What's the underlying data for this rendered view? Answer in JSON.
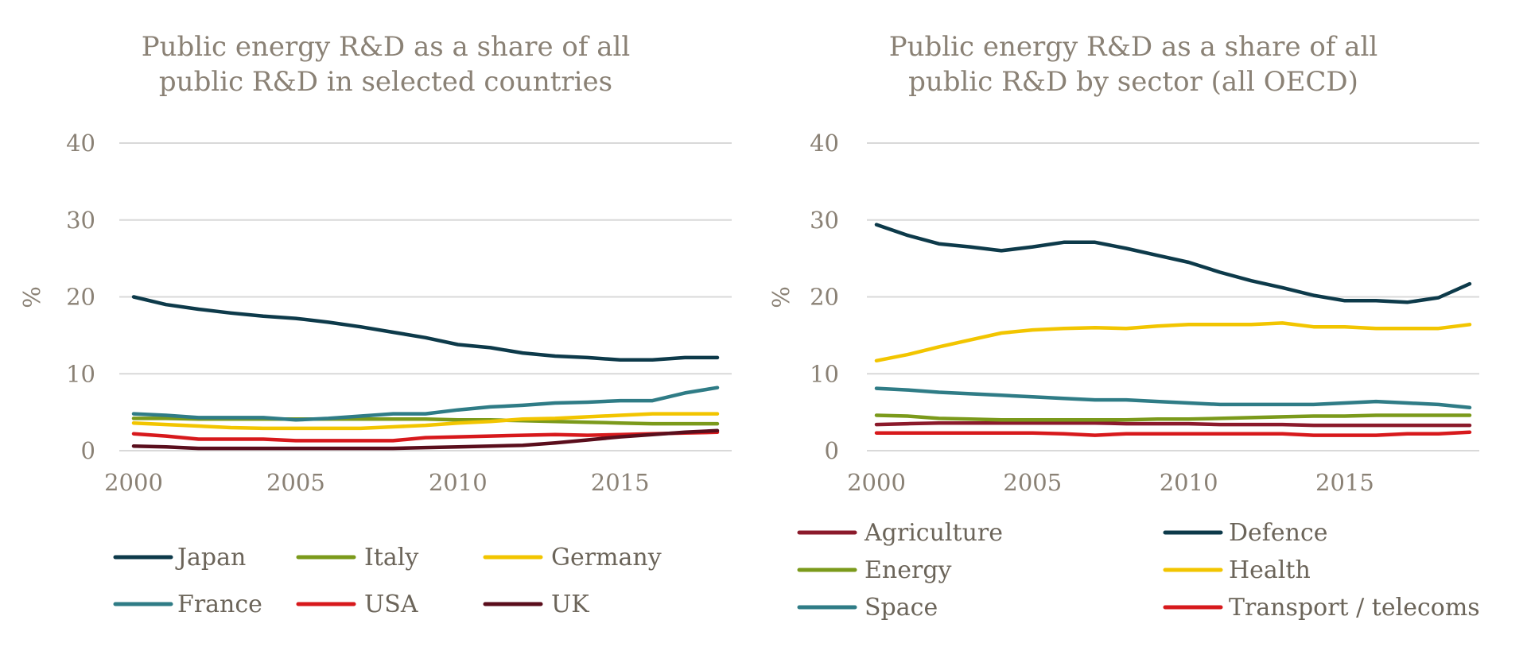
{
  "chart_data": [
    {
      "type": "line",
      "title_lines": [
        "Public energy R&D as a share of all",
        "public R&D in selected countries"
      ],
      "ylabel": "%",
      "xlabel": "",
      "ylim": [
        0,
        40
      ],
      "yticks": [
        0,
        10,
        20,
        30,
        40
      ],
      "xticks": [
        2000,
        2005,
        2010,
        2015
      ],
      "grid": true,
      "legend_position": "bottom",
      "x": [
        2000,
        2001,
        2002,
        2003,
        2004,
        2005,
        2006,
        2007,
        2008,
        2009,
        2010,
        2011,
        2012,
        2013,
        2014,
        2015,
        2016,
        2017,
        2018
      ],
      "series": [
        {
          "name": "Japan",
          "color": "#0d3a4a",
          "values": [
            20.0,
            19.0,
            18.4,
            17.9,
            17.5,
            17.2,
            16.7,
            16.1,
            15.4,
            14.7,
            13.8,
            13.4,
            12.7,
            12.3,
            12.1,
            11.8,
            11.8,
            12.1,
            12.1
          ]
        },
        {
          "name": "Italy",
          "color": "#7b9a1b",
          "values": [
            4.2,
            4.2,
            4.1,
            4.1,
            4.1,
            4.1,
            4.1,
            4.1,
            4.1,
            4.1,
            4.0,
            4.0,
            3.9,
            3.8,
            3.7,
            3.6,
            3.5,
            3.5,
            3.5
          ]
        },
        {
          "name": "Germany",
          "color": "#f2c500",
          "values": [
            3.6,
            3.4,
            3.2,
            3.0,
            2.9,
            2.9,
            2.9,
            2.9,
            3.1,
            3.3,
            3.6,
            3.8,
            4.1,
            4.2,
            4.4,
            4.6,
            4.8,
            4.8,
            4.8
          ]
        },
        {
          "name": "France",
          "color": "#2f7c86",
          "values": [
            4.8,
            4.6,
            4.3,
            4.3,
            4.3,
            4.0,
            4.2,
            4.5,
            4.8,
            4.8,
            5.3,
            5.7,
            5.9,
            6.2,
            6.3,
            6.5,
            6.5,
            7.5,
            8.2
          ]
        },
        {
          "name": "USA",
          "color": "#d7191c",
          "values": [
            2.2,
            1.9,
            1.5,
            1.5,
            1.5,
            1.3,
            1.3,
            1.3,
            1.3,
            1.7,
            1.8,
            1.9,
            2.0,
            2.1,
            2.0,
            2.1,
            2.2,
            2.3,
            2.4
          ]
        },
        {
          "name": "UK",
          "color": "#5a0e1c",
          "values": [
            0.6,
            0.5,
            0.3,
            0.3,
            0.3,
            0.3,
            0.3,
            0.3,
            0.3,
            0.4,
            0.5,
            0.6,
            0.7,
            1.0,
            1.4,
            1.8,
            2.1,
            2.4,
            2.6
          ]
        }
      ]
    },
    {
      "type": "line",
      "title_lines": [
        "Public energy R&D as a share of all",
        "public R&D by sector (all OECD)"
      ],
      "ylabel": "%",
      "xlabel": "",
      "ylim": [
        0,
        40
      ],
      "yticks": [
        0,
        10,
        20,
        30,
        40
      ],
      "xticks": [
        2000,
        2005,
        2010,
        2015
      ],
      "grid": true,
      "legend_position": "bottom",
      "x": [
        2000,
        2001,
        2002,
        2003,
        2004,
        2005,
        2006,
        2007,
        2008,
        2009,
        2010,
        2011,
        2012,
        2013,
        2014,
        2015,
        2016,
        2017,
        2018,
        2019
      ],
      "series": [
        {
          "name": "Agriculture",
          "color": "#8b1a2b",
          "values": [
            3.4,
            3.5,
            3.6,
            3.6,
            3.6,
            3.6,
            3.6,
            3.6,
            3.5,
            3.5,
            3.5,
            3.4,
            3.4,
            3.4,
            3.3,
            3.3,
            3.3,
            3.3,
            3.3,
            3.3
          ]
        },
        {
          "name": "Defence",
          "color": "#0d3a4a",
          "values": [
            29.4,
            28.0,
            26.9,
            26.5,
            26.0,
            26.5,
            27.1,
            27.1,
            26.3,
            25.4,
            24.5,
            23.2,
            22.1,
            21.2,
            20.2,
            19.5,
            19.5,
            19.3,
            19.9,
            21.7
          ]
        },
        {
          "name": "Energy",
          "color": "#7b9a1b",
          "values": [
            4.6,
            4.5,
            4.2,
            4.1,
            4.0,
            4.0,
            4.0,
            4.0,
            4.0,
            4.1,
            4.1,
            4.2,
            4.3,
            4.4,
            4.5,
            4.5,
            4.6,
            4.6,
            4.6,
            4.6
          ]
        },
        {
          "name": "Health",
          "color": "#f2c500",
          "values": [
            11.7,
            12.5,
            13.5,
            14.4,
            15.3,
            15.7,
            15.9,
            16.0,
            15.9,
            16.2,
            16.4,
            16.4,
            16.4,
            16.6,
            16.1,
            16.1,
            15.9,
            15.9,
            15.9,
            16.4
          ]
        },
        {
          "name": "Space",
          "color": "#2f7c86",
          "values": [
            8.1,
            7.9,
            7.6,
            7.4,
            7.2,
            7.0,
            6.8,
            6.6,
            6.6,
            6.4,
            6.2,
            6.0,
            6.0,
            6.0,
            6.0,
            6.2,
            6.4,
            6.2,
            6.0,
            5.6
          ]
        },
        {
          "name": "Transport / telecoms",
          "color": "#d7191c",
          "values": [
            2.3,
            2.3,
            2.3,
            2.3,
            2.3,
            2.3,
            2.2,
            2.0,
            2.2,
            2.2,
            2.2,
            2.2,
            2.2,
            2.2,
            2.0,
            2.0,
            2.0,
            2.2,
            2.2,
            2.4
          ]
        }
      ]
    }
  ]
}
